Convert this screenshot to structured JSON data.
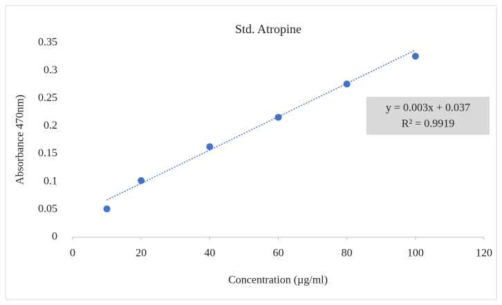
{
  "chart_data": {
    "type": "scatter",
    "title": "Std. Atropine",
    "x_label": "Concentration (µg/ml)",
    "y_label": "Absorbance 470nm)",
    "x": [
      10,
      20,
      40,
      60,
      80,
      100
    ],
    "series": [
      {
        "name": "Std. Atropine",
        "color": "#4472c4",
        "values": [
          0.051,
          0.102,
          0.163,
          0.216,
          0.276,
          0.326
        ]
      }
    ],
    "xlim": [
      0,
      120
    ],
    "xticks": [
      0,
      20,
      40,
      60,
      80,
      100,
      120
    ],
    "ylim": [
      0,
      0.35
    ],
    "yticks": [
      0,
      0.05,
      0.1,
      0.15,
      0.2,
      0.25,
      0.3,
      0.35
    ],
    "grid": false,
    "trendline": {
      "slope": 0.003,
      "intercept": 0.037,
      "color": "#4472c4",
      "equation": "y = 0.003x + 0.037",
      "r_squared": "R² = 0.9919"
    }
  }
}
